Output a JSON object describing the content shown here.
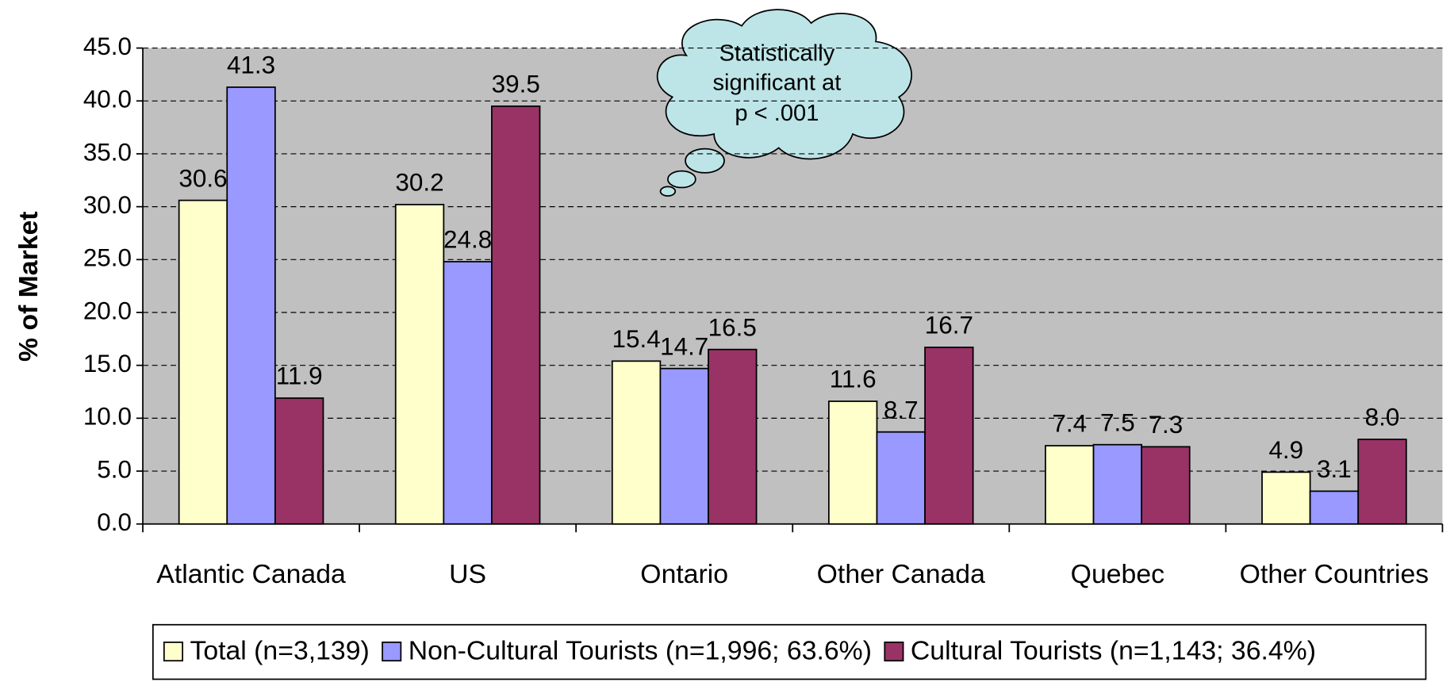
{
  "chart_data": {
    "type": "bar",
    "y_axis_label": "% of Market",
    "annotation": [
      "Statistically",
      "significant at",
      "p < .001"
    ],
    "categories": [
      "Atlantic Canada",
      "US",
      "Ontario",
      "Other Canada",
      "Quebec",
      "Other Countries"
    ],
    "series": [
      {
        "name": "Total (n=3,139)",
        "color": "#ffffcc",
        "values": [
          30.6,
          30.2,
          15.4,
          11.6,
          7.4,
          4.9
        ],
        "value_labels": [
          "30.6",
          "30.2",
          "15.4",
          "11.6",
          "7.4",
          "4.9"
        ]
      },
      {
        "name": "Non-Cultural Tourists (n=1,996; 63.6%)",
        "color": "#9999ff",
        "values": [
          41.3,
          24.8,
          14.7,
          8.7,
          7.5,
          3.1
        ],
        "value_labels": [
          "41.3",
          "24.8",
          "14.7",
          "8.7",
          "7.5",
          "3.1"
        ]
      },
      {
        "name": "Cultural Tourists (n=1,143; 36.4%)",
        "color": "#993366",
        "values": [
          11.9,
          39.5,
          16.5,
          16.7,
          7.3,
          8.0
        ],
        "value_labels": [
          "11.9",
          "39.5",
          "16.5",
          "16.7",
          "7.3",
          "8.0"
        ]
      }
    ],
    "ylim": [
      0,
      45
    ],
    "yticks": [
      {
        "value": 0,
        "label": "0.0"
      },
      {
        "value": 5,
        "label": "5.0"
      },
      {
        "value": 10,
        "label": "10.0"
      },
      {
        "value": 15,
        "label": "15.0"
      },
      {
        "value": 20,
        "label": "20.0"
      },
      {
        "value": 25,
        "label": "25.0"
      },
      {
        "value": 30,
        "label": "30.0"
      },
      {
        "value": 35,
        "label": "35.0"
      },
      {
        "value": 40,
        "label": "40.0"
      },
      {
        "value": 45,
        "label": "45.0"
      }
    ],
    "grid": true,
    "plot_background": "#c0c0c0",
    "legend": "bottom"
  }
}
